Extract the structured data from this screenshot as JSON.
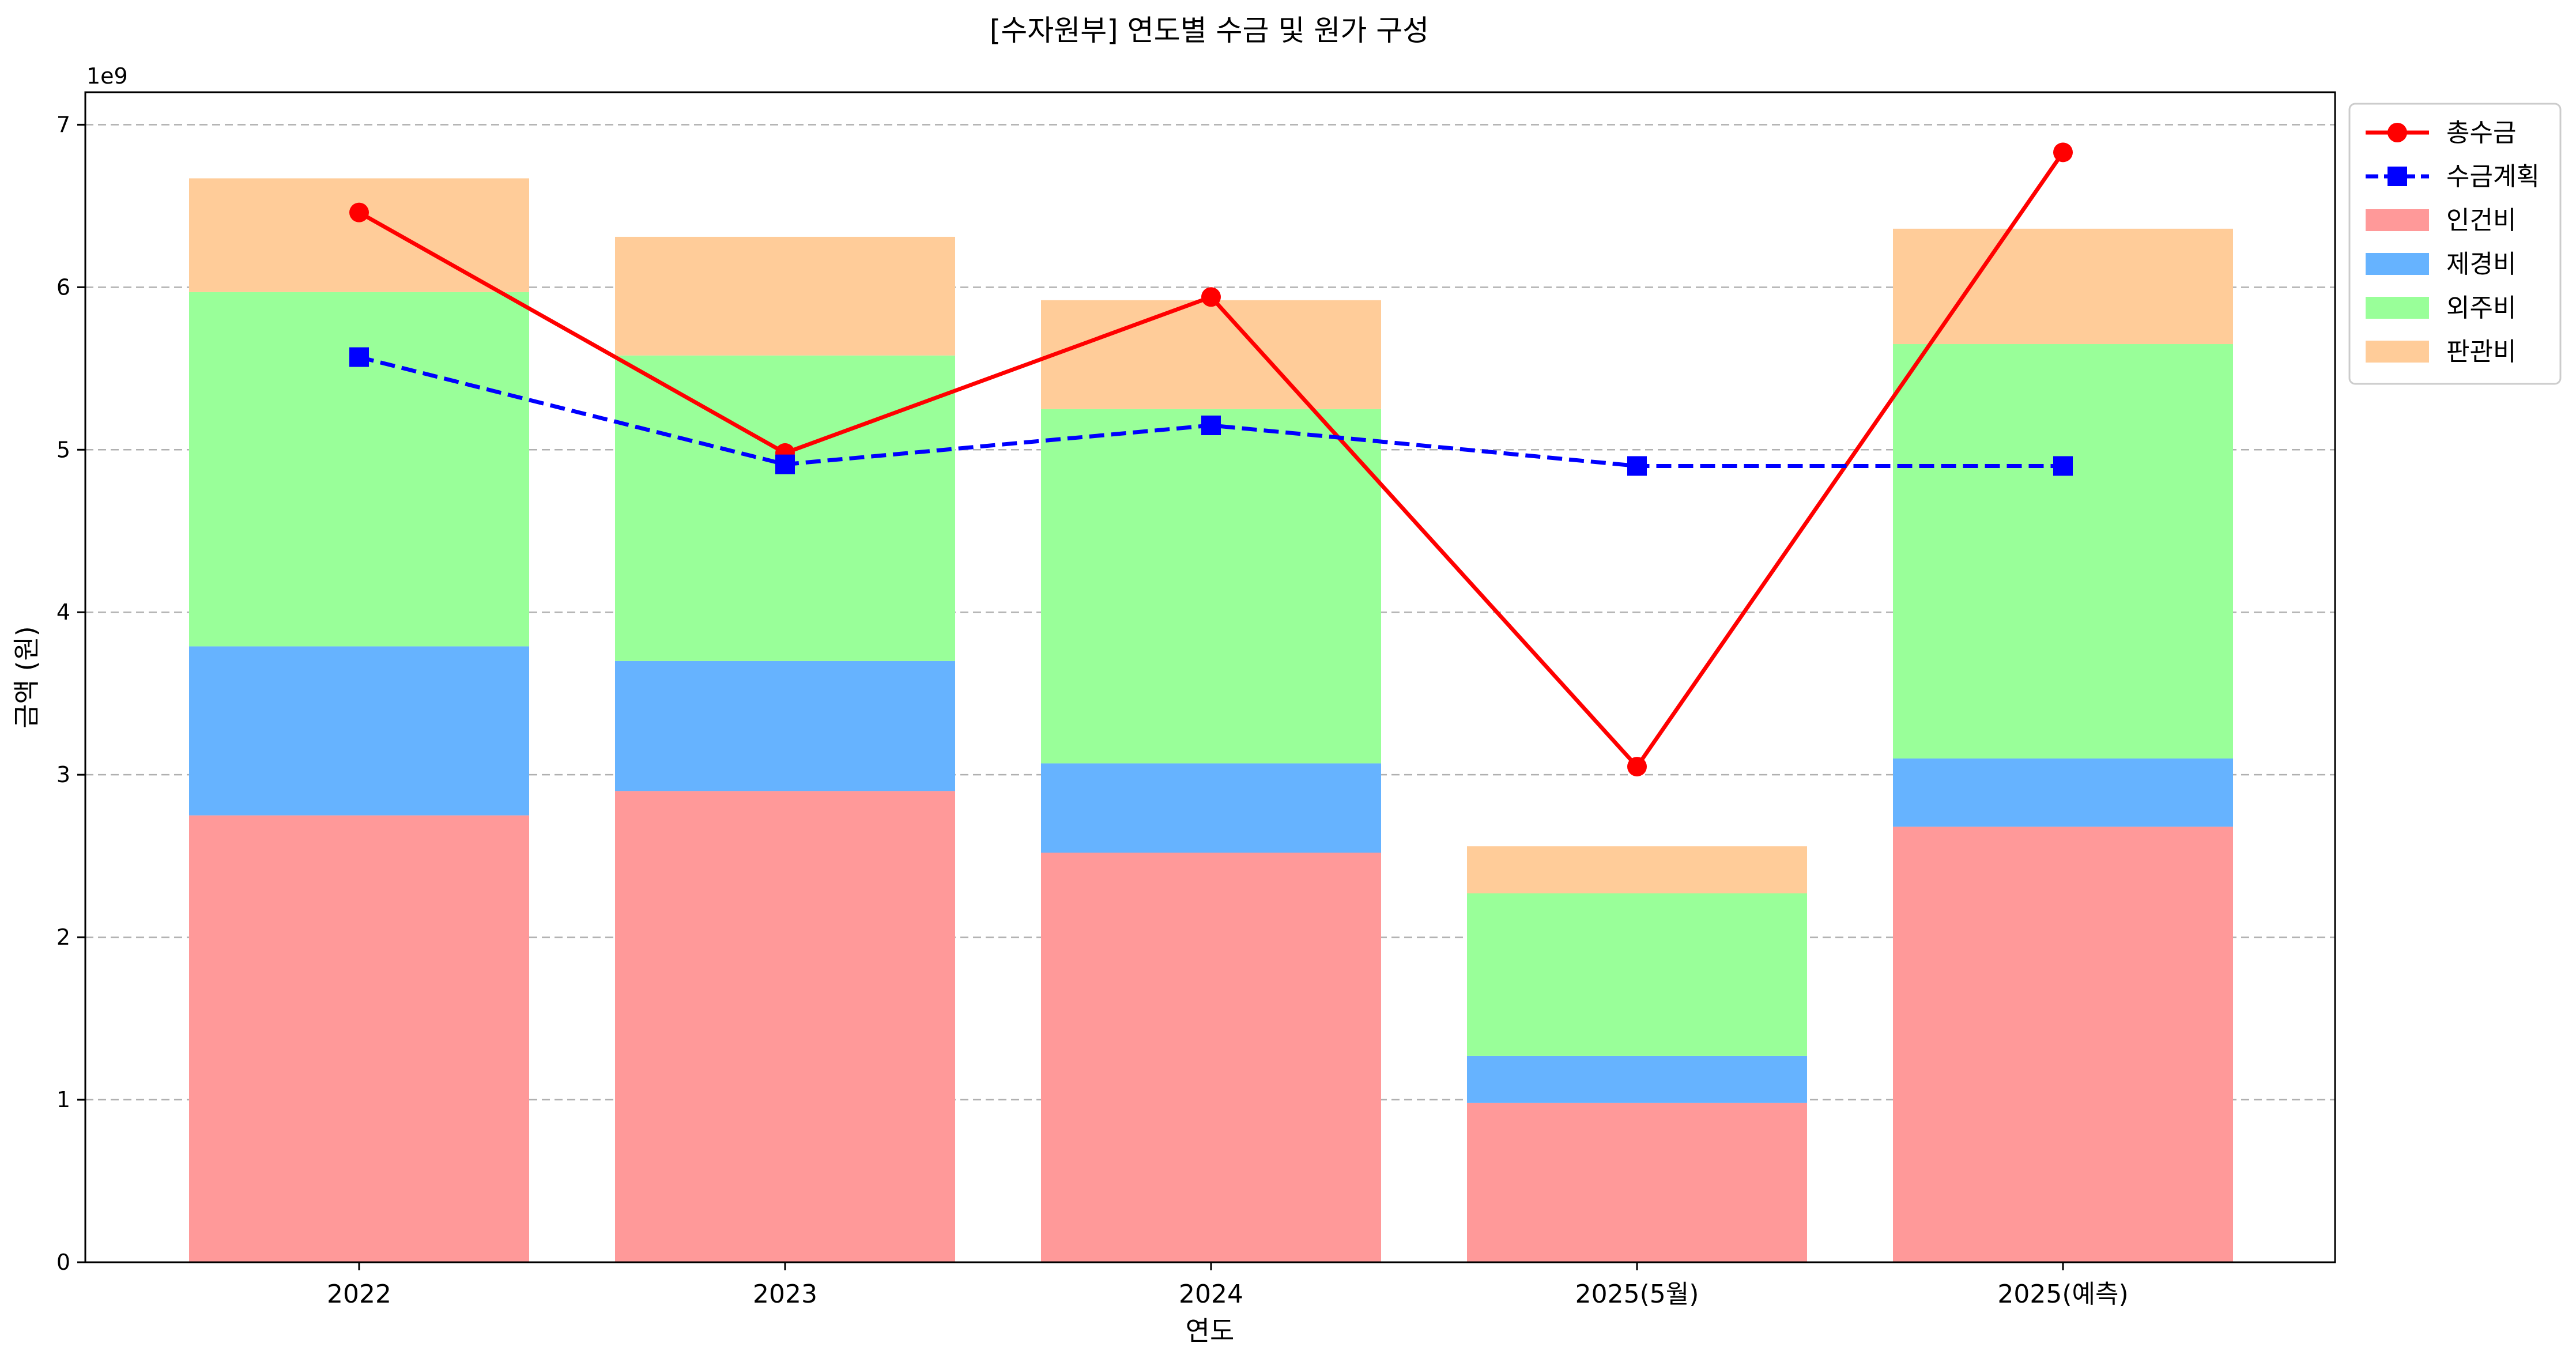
{
  "chart_data": {
    "type": "bar",
    "title": "[수자원부] 연도별 수금 및 원가 구성",
    "xlabel": "연도",
    "ylabel": "금액 (원)",
    "y_offset_label": "1e9",
    "y_scale": 1000000000,
    "ylim": [
      0,
      7.2
    ],
    "yticks": [
      0,
      1,
      2,
      3,
      4,
      5,
      6,
      7
    ],
    "grid": "horizontal-dashed",
    "legend_position": "outside-right-top",
    "categories": [
      "2022",
      "2023",
      "2024",
      "2025(5월)",
      "2025(예측)"
    ],
    "stacked_series": [
      {
        "name": "인건비",
        "color": "#ff9999",
        "values": [
          2.75,
          2.9,
          2.52,
          0.98,
          2.68
        ]
      },
      {
        "name": "제경비",
        "color": "#66b3ff",
        "values": [
          1.04,
          0.8,
          0.55,
          0.29,
          0.42
        ]
      },
      {
        "name": "외주비",
        "color": "#99ff99",
        "values": [
          2.18,
          1.88,
          2.18,
          1.0,
          2.55
        ]
      },
      {
        "name": "판관비",
        "color": "#ffcc99",
        "values": [
          0.7,
          0.73,
          0.67,
          0.29,
          0.71
        ]
      }
    ],
    "line_series": [
      {
        "name": "총수금",
        "color": "#ff0000",
        "marker": "circle",
        "style": "solid",
        "values": [
          6.46,
          4.98,
          5.94,
          3.05,
          6.83
        ]
      },
      {
        "name": "수금계획",
        "color": "#0000ff",
        "marker": "square",
        "style": "dashed",
        "values": [
          5.57,
          4.91,
          5.15,
          4.9,
          4.9
        ]
      }
    ],
    "legend_order": [
      "총수금",
      "수금계획",
      "인건비",
      "제경비",
      "외주비",
      "판관비"
    ]
  }
}
